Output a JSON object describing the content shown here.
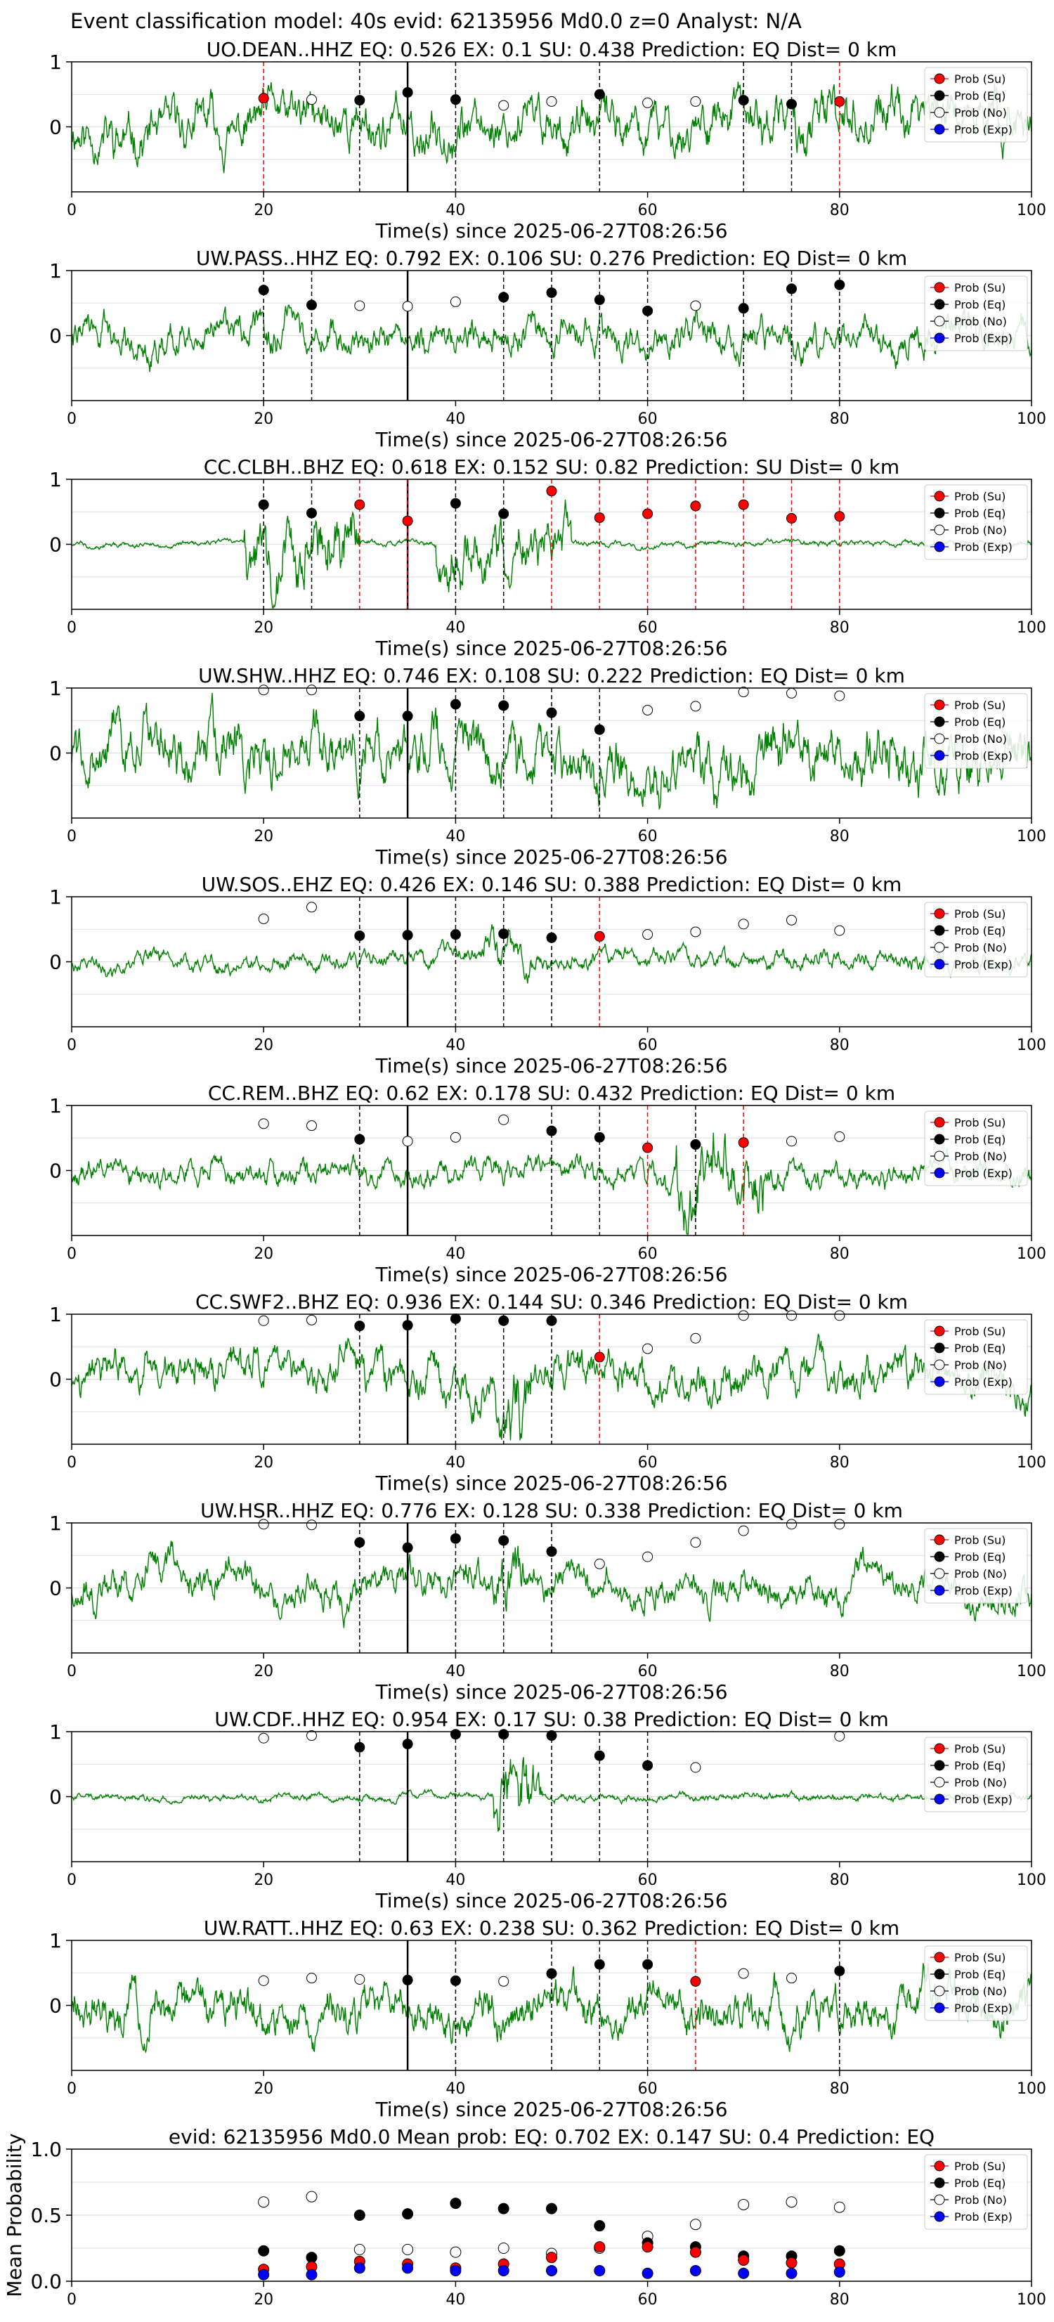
{
  "figure": {
    "suptitle": "Event classification model: 40s evid: 62135956 Md0.0 z=0 Analyst: N/A"
  },
  "legend_labels": [
    "Prob (Su)",
    "Prob (Eq)",
    "Prob (No)",
    "Prob (Exp)"
  ],
  "colors": {
    "waveform": "#008000",
    "su": "#ff0000",
    "eq": "#000000",
    "no": "#ffffff",
    "exp": "#0000ff",
    "su_line": "#ff0000",
    "eq_line": "#000000",
    "grid": "#dddddd"
  },
  "chart_data": [
    {
      "type": "line",
      "station": "UO.DEAN..HHZ",
      "title": "UO.DEAN..HHZ   EQ: 0.526  EX: 0.1  SU: 0.438   Prediction: EQ    Dist= 0 km",
      "xlabel": "Time(s) since 2025-06-27T08:26:56",
      "xlim": [
        0,
        100
      ],
      "ylim": [
        -1,
        1
      ],
      "xticks": [
        "0",
        "20",
        "40",
        "60",
        "80",
        "100"
      ],
      "yticks": [
        "0",
        "1"
      ],
      "amp": 0.5,
      "seed": 11,
      "burst_windows": [],
      "pick_time": 35,
      "points": [
        {
          "t": 20,
          "p": 0.44,
          "c": "su"
        },
        {
          "t": 25,
          "p": 0.42,
          "c": "no"
        },
        {
          "t": 30,
          "p": 0.41,
          "c": "eq"
        },
        {
          "t": 35,
          "p": 0.53,
          "c": "eq"
        },
        {
          "t": 40,
          "p": 0.42,
          "c": "eq"
        },
        {
          "t": 45,
          "p": 0.33,
          "c": "no"
        },
        {
          "t": 50,
          "p": 0.39,
          "c": "no"
        },
        {
          "t": 55,
          "p": 0.5,
          "c": "eq"
        },
        {
          "t": 60,
          "p": 0.37,
          "c": "no"
        },
        {
          "t": 65,
          "p": 0.39,
          "c": "no"
        },
        {
          "t": 70,
          "p": 0.41,
          "c": "eq"
        },
        {
          "t": 75,
          "p": 0.35,
          "c": "eq"
        },
        {
          "t": 80,
          "p": 0.39,
          "c": "su"
        }
      ]
    },
    {
      "type": "line",
      "station": "UW.PASS..HHZ",
      "title": "UW.PASS..HHZ   EQ: 0.792  EX: 0.106  SU: 0.276   Prediction: EQ    Dist= 0 km",
      "xlabel": "Time(s) since 2025-06-27T08:26:56",
      "xlim": [
        0,
        100
      ],
      "ylim": [
        -1,
        1
      ],
      "xticks": [
        "0",
        "20",
        "40",
        "60",
        "80",
        "100"
      ],
      "yticks": [
        "0",
        "1"
      ],
      "amp": 0.35,
      "seed": 22,
      "burst_windows": [],
      "pick_time": 35,
      "points": [
        {
          "t": 20,
          "p": 0.7,
          "c": "eq"
        },
        {
          "t": 25,
          "p": 0.47,
          "c": "eq"
        },
        {
          "t": 30,
          "p": 0.46,
          "c": "no"
        },
        {
          "t": 35,
          "p": 0.45,
          "c": "no"
        },
        {
          "t": 40,
          "p": 0.52,
          "c": "no"
        },
        {
          "t": 45,
          "p": 0.59,
          "c": "eq"
        },
        {
          "t": 50,
          "p": 0.66,
          "c": "eq"
        },
        {
          "t": 55,
          "p": 0.55,
          "c": "eq"
        },
        {
          "t": 60,
          "p": 0.38,
          "c": "eq"
        },
        {
          "t": 65,
          "p": 0.46,
          "c": "no"
        },
        {
          "t": 70,
          "p": 0.42,
          "c": "eq"
        },
        {
          "t": 75,
          "p": 0.72,
          "c": "eq"
        },
        {
          "t": 80,
          "p": 0.78,
          "c": "eq"
        }
      ]
    },
    {
      "type": "line",
      "station": "CC.CLBH..BHZ",
      "title": "CC.CLBH..BHZ   EQ: 0.618  EX: 0.152  SU: 0.82   Prediction: SU    Dist= 0 km",
      "xlabel": "Time(s) since 2025-06-27T08:26:56",
      "xlim": [
        0,
        100
      ],
      "ylim": [
        -1,
        1
      ],
      "xticks": [
        "0",
        "20",
        "40",
        "60",
        "80",
        "100"
      ],
      "yticks": [
        "0",
        "1"
      ],
      "amp": 0.06,
      "seed": 33,
      "burst_windows": [
        [
          18,
          30,
          0.75
        ],
        [
          38,
          52,
          0.55
        ]
      ],
      "pick_time": 35,
      "points": [
        {
          "t": 20,
          "p": 0.61,
          "c": "eq"
        },
        {
          "t": 25,
          "p": 0.48,
          "c": "eq"
        },
        {
          "t": 30,
          "p": 0.61,
          "c": "su"
        },
        {
          "t": 35,
          "p": 0.36,
          "c": "su"
        },
        {
          "t": 40,
          "p": 0.63,
          "c": "eq"
        },
        {
          "t": 45,
          "p": 0.47,
          "c": "eq"
        },
        {
          "t": 50,
          "p": 0.82,
          "c": "su"
        },
        {
          "t": 55,
          "p": 0.41,
          "c": "su"
        },
        {
          "t": 60,
          "p": 0.47,
          "c": "su"
        },
        {
          "t": 65,
          "p": 0.59,
          "c": "su"
        },
        {
          "t": 70,
          "p": 0.61,
          "c": "su"
        },
        {
          "t": 75,
          "p": 0.4,
          "c": "su"
        },
        {
          "t": 80,
          "p": 0.43,
          "c": "su"
        }
      ]
    },
    {
      "type": "line",
      "station": "UW.SHW..HHZ",
      "title": "UW.SHW..HHZ   EQ: 0.746  EX: 0.108  SU: 0.222   Prediction: EQ    Dist= 0 km",
      "xlabel": "Time(s) since 2025-06-27T08:26:56",
      "xlim": [
        0,
        100
      ],
      "ylim": [
        -1,
        1
      ],
      "xticks": [
        "0",
        "20",
        "40",
        "60",
        "80",
        "100"
      ],
      "yticks": [
        "0",
        "1"
      ],
      "amp": 0.6,
      "seed": 44,
      "burst_windows": [],
      "pick_time": 35,
      "points": [
        {
          "t": 20,
          "p": 0.97,
          "c": "no"
        },
        {
          "t": 25,
          "p": 0.97,
          "c": "no"
        },
        {
          "t": 30,
          "p": 0.57,
          "c": "eq"
        },
        {
          "t": 35,
          "p": 0.57,
          "c": "eq"
        },
        {
          "t": 40,
          "p": 0.75,
          "c": "eq"
        },
        {
          "t": 45,
          "p": 0.73,
          "c": "eq"
        },
        {
          "t": 50,
          "p": 0.62,
          "c": "eq"
        },
        {
          "t": 55,
          "p": 0.36,
          "c": "eq"
        },
        {
          "t": 60,
          "p": 0.66,
          "c": "no"
        },
        {
          "t": 65,
          "p": 0.72,
          "c": "no"
        },
        {
          "t": 70,
          "p": 0.94,
          "c": "no"
        },
        {
          "t": 75,
          "p": 0.92,
          "c": "no"
        },
        {
          "t": 80,
          "p": 0.88,
          "c": "no"
        }
      ]
    },
    {
      "type": "line",
      "station": "UW.SOS..EHZ",
      "title": "UW.SOS..EHZ   EQ: 0.426  EX: 0.146  SU: 0.388   Prediction: EQ    Dist= 0 km",
      "xlabel": "Time(s) since 2025-06-27T08:26:56",
      "xlim": [
        0,
        100
      ],
      "ylim": [
        -1,
        1
      ],
      "xticks": [
        "0",
        "20",
        "40",
        "60",
        "80",
        "100"
      ],
      "yticks": [
        "0",
        "1"
      ],
      "amp": 0.18,
      "seed": 55,
      "burst_windows": [
        [
          43,
          48,
          0.35
        ]
      ],
      "pick_time": 35,
      "points": [
        {
          "t": 20,
          "p": 0.66,
          "c": "no"
        },
        {
          "t": 25,
          "p": 0.84,
          "c": "no"
        },
        {
          "t": 30,
          "p": 0.4,
          "c": "eq"
        },
        {
          "t": 35,
          "p": 0.41,
          "c": "eq"
        },
        {
          "t": 40,
          "p": 0.42,
          "c": "eq"
        },
        {
          "t": 45,
          "p": 0.43,
          "c": "eq"
        },
        {
          "t": 50,
          "p": 0.37,
          "c": "eq"
        },
        {
          "t": 55,
          "p": 0.39,
          "c": "su"
        },
        {
          "t": 60,
          "p": 0.42,
          "c": "no"
        },
        {
          "t": 65,
          "p": 0.46,
          "c": "no"
        },
        {
          "t": 70,
          "p": 0.58,
          "c": "no"
        },
        {
          "t": 75,
          "p": 0.64,
          "c": "no"
        },
        {
          "t": 80,
          "p": 0.48,
          "c": "no"
        }
      ]
    },
    {
      "type": "line",
      "station": "CC.REM..BHZ",
      "title": "CC.REM..BHZ   EQ: 0.62  EX: 0.178  SU: 0.432   Prediction: EQ    Dist= 0 km",
      "xlabel": "Time(s) since 2025-06-27T08:26:56",
      "xlim": [
        0,
        100
      ],
      "ylim": [
        -1,
        1
      ],
      "xticks": [
        "0",
        "20",
        "40",
        "60",
        "80",
        "100"
      ],
      "yticks": [
        "0",
        "1"
      ],
      "amp": 0.25,
      "seed": 66,
      "burst_windows": [
        [
          63,
          72,
          0.75
        ]
      ],
      "pick_time": 35,
      "points": [
        {
          "t": 20,
          "p": 0.72,
          "c": "no"
        },
        {
          "t": 25,
          "p": 0.69,
          "c": "no"
        },
        {
          "t": 30,
          "p": 0.48,
          "c": "eq"
        },
        {
          "t": 35,
          "p": 0.45,
          "c": "no"
        },
        {
          "t": 40,
          "p": 0.51,
          "c": "no"
        },
        {
          "t": 45,
          "p": 0.78,
          "c": "no"
        },
        {
          "t": 50,
          "p": 0.61,
          "c": "eq"
        },
        {
          "t": 55,
          "p": 0.51,
          "c": "eq"
        },
        {
          "t": 60,
          "p": 0.35,
          "c": "su"
        },
        {
          "t": 65,
          "p": 0.4,
          "c": "eq"
        },
        {
          "t": 70,
          "p": 0.43,
          "c": "su"
        },
        {
          "t": 75,
          "p": 0.45,
          "c": "no"
        },
        {
          "t": 80,
          "p": 0.52,
          "c": "no"
        }
      ]
    },
    {
      "type": "line",
      "station": "CC.SWF2..BHZ",
      "title": "CC.SWF2..BHZ   EQ: 0.936  EX: 0.144  SU: 0.346   Prediction: EQ    Dist= 0 km",
      "xlabel": "Time(s) since 2025-06-27T08:26:56",
      "xlim": [
        0,
        100
      ],
      "ylim": [
        -1,
        1
      ],
      "xticks": [
        "0",
        "20",
        "40",
        "60",
        "80",
        "100"
      ],
      "yticks": [
        "0",
        "1"
      ],
      "amp": 0.4,
      "seed": 77,
      "burst_windows": [
        [
          44,
          48,
          0.85
        ]
      ],
      "pick_time": 35,
      "points": [
        {
          "t": 20,
          "p": 0.9,
          "c": "no"
        },
        {
          "t": 25,
          "p": 0.91,
          "c": "no"
        },
        {
          "t": 30,
          "p": 0.82,
          "c": "eq"
        },
        {
          "t": 35,
          "p": 0.83,
          "c": "eq"
        },
        {
          "t": 40,
          "p": 0.93,
          "c": "eq"
        },
        {
          "t": 45,
          "p": 0.9,
          "c": "eq"
        },
        {
          "t": 50,
          "p": 0.9,
          "c": "eq"
        },
        {
          "t": 55,
          "p": 0.34,
          "c": "su"
        },
        {
          "t": 60,
          "p": 0.47,
          "c": "no"
        },
        {
          "t": 65,
          "p": 0.63,
          "c": "no"
        },
        {
          "t": 70,
          "p": 0.98,
          "c": "no"
        },
        {
          "t": 75,
          "p": 0.98,
          "c": "no"
        },
        {
          "t": 80,
          "p": 0.98,
          "c": "no"
        }
      ]
    },
    {
      "type": "line",
      "station": "UW.HSR..HHZ",
      "title": "UW.HSR..HHZ   EQ: 0.776  EX: 0.128  SU: 0.338   Prediction: EQ    Dist= 0 km",
      "xlabel": "Time(s) since 2025-06-27T08:26:56",
      "xlim": [
        0,
        100
      ],
      "ylim": [
        -1,
        1
      ],
      "xticks": [
        "0",
        "20",
        "40",
        "60",
        "80",
        "100"
      ],
      "yticks": [
        "0",
        "1"
      ],
      "amp": 0.35,
      "seed": 88,
      "burst_windows": [
        [
          44,
          47,
          0.6
        ]
      ],
      "pick_time": 35,
      "points": [
        {
          "t": 20,
          "p": 0.98,
          "c": "no"
        },
        {
          "t": 25,
          "p": 0.97,
          "c": "no"
        },
        {
          "t": 30,
          "p": 0.7,
          "c": "eq"
        },
        {
          "t": 35,
          "p": 0.62,
          "c": "eq"
        },
        {
          "t": 40,
          "p": 0.76,
          "c": "eq"
        },
        {
          "t": 45,
          "p": 0.73,
          "c": "eq"
        },
        {
          "t": 50,
          "p": 0.56,
          "c": "eq"
        },
        {
          "t": 55,
          "p": 0.37,
          "c": "no"
        },
        {
          "t": 60,
          "p": 0.48,
          "c": "no"
        },
        {
          "t": 65,
          "p": 0.7,
          "c": "no"
        },
        {
          "t": 70,
          "p": 0.88,
          "c": "no"
        },
        {
          "t": 75,
          "p": 0.98,
          "c": "no"
        },
        {
          "t": 80,
          "p": 0.98,
          "c": "no"
        }
      ]
    },
    {
      "type": "line",
      "station": "UW.CDF..HHZ",
      "title": "UW.CDF..HHZ   EQ: 0.954  EX: 0.17  SU: 0.38   Prediction: EQ    Dist= 0 km",
      "xlabel": "Time(s) since 2025-06-27T08:26:56",
      "xlim": [
        0,
        100
      ],
      "ylim": [
        -1,
        1
      ],
      "xticks": [
        "0",
        "20",
        "40",
        "60",
        "80",
        "100"
      ],
      "yticks": [
        "0",
        "1"
      ],
      "amp": 0.08,
      "seed": 99,
      "burst_windows": [
        [
          44,
          49,
          0.7
        ]
      ],
      "pick_time": 35,
      "points": [
        {
          "t": 20,
          "p": 0.9,
          "c": "no"
        },
        {
          "t": 25,
          "p": 0.94,
          "c": "no"
        },
        {
          "t": 30,
          "p": 0.76,
          "c": "eq"
        },
        {
          "t": 35,
          "p": 0.81,
          "c": "eq"
        },
        {
          "t": 40,
          "p": 0.96,
          "c": "eq"
        },
        {
          "t": 45,
          "p": 0.96,
          "c": "eq"
        },
        {
          "t": 50,
          "p": 0.94,
          "c": "eq"
        },
        {
          "t": 55,
          "p": 0.63,
          "c": "eq"
        },
        {
          "t": 60,
          "p": 0.48,
          "c": "eq"
        },
        {
          "t": 65,
          "p": 0.45,
          "c": "no"
        },
        {
          "t": 80,
          "p": 0.93,
          "c": "no"
        }
      ]
    },
    {
      "type": "line",
      "station": "UW.RATT..HHZ",
      "title": "UW.RATT..HHZ   EQ: 0.63  EX: 0.238  SU: 0.362   Prediction: EQ    Dist= 0 km",
      "xlabel": "Time(s) since 2025-06-27T08:26:56",
      "xlim": [
        0,
        100
      ],
      "ylim": [
        -1,
        1
      ],
      "xticks": [
        "0",
        "20",
        "40",
        "60",
        "80",
        "100"
      ],
      "yticks": [
        "0",
        "1"
      ],
      "amp": 0.45,
      "seed": 111,
      "burst_windows": [],
      "pick_time": 35,
      "points": [
        {
          "t": 20,
          "p": 0.38,
          "c": "no"
        },
        {
          "t": 25,
          "p": 0.42,
          "c": "no"
        },
        {
          "t": 30,
          "p": 0.4,
          "c": "no"
        },
        {
          "t": 35,
          "p": 0.39,
          "c": "eq"
        },
        {
          "t": 40,
          "p": 0.38,
          "c": "eq"
        },
        {
          "t": 45,
          "p": 0.37,
          "c": "no"
        },
        {
          "t": 50,
          "p": 0.49,
          "c": "eq"
        },
        {
          "t": 55,
          "p": 0.63,
          "c": "eq"
        },
        {
          "t": 60,
          "p": 0.63,
          "c": "eq"
        },
        {
          "t": 65,
          "p": 0.37,
          "c": "su"
        },
        {
          "t": 70,
          "p": 0.49,
          "c": "no"
        },
        {
          "t": 75,
          "p": 0.42,
          "c": "no"
        },
        {
          "t": 80,
          "p": 0.53,
          "c": "eq"
        }
      ]
    },
    {
      "type": "scatter",
      "title": "evid: 62135956   Md0.0   Mean prob:   EQ: 0.702  EX: 0.147  SU: 0.4   Prediction: EQ",
      "ylabel": "Mean Probability",
      "xlim": [
        0,
        100
      ],
      "ylim": [
        0,
        1
      ],
      "xticks": [
        "0",
        "20",
        "40",
        "60",
        "80",
        "100"
      ],
      "yticks": [
        "0.0",
        "0.5",
        "1.0"
      ],
      "x": [
        20,
        25,
        30,
        35,
        40,
        45,
        50,
        55,
        60,
        65,
        70,
        75,
        80
      ],
      "series": [
        {
          "key": "no",
          "values": [
            0.6,
            0.64,
            0.24,
            0.24,
            0.22,
            0.25,
            0.21,
            0.25,
            0.34,
            0.43,
            0.58,
            0.6,
            0.56
          ]
        },
        {
          "key": "eq",
          "values": [
            0.23,
            0.18,
            0.5,
            0.51,
            0.59,
            0.55,
            0.55,
            0.42,
            0.29,
            0.26,
            0.19,
            0.19,
            0.23
          ]
        },
        {
          "key": "su",
          "values": [
            0.09,
            0.11,
            0.15,
            0.13,
            0.1,
            0.13,
            0.18,
            0.26,
            0.26,
            0.22,
            0.16,
            0.14,
            0.13
          ]
        },
        {
          "key": "exp",
          "values": [
            0.05,
            0.05,
            0.1,
            0.1,
            0.08,
            0.08,
            0.08,
            0.08,
            0.06,
            0.08,
            0.06,
            0.06,
            0.07
          ]
        }
      ]
    }
  ]
}
